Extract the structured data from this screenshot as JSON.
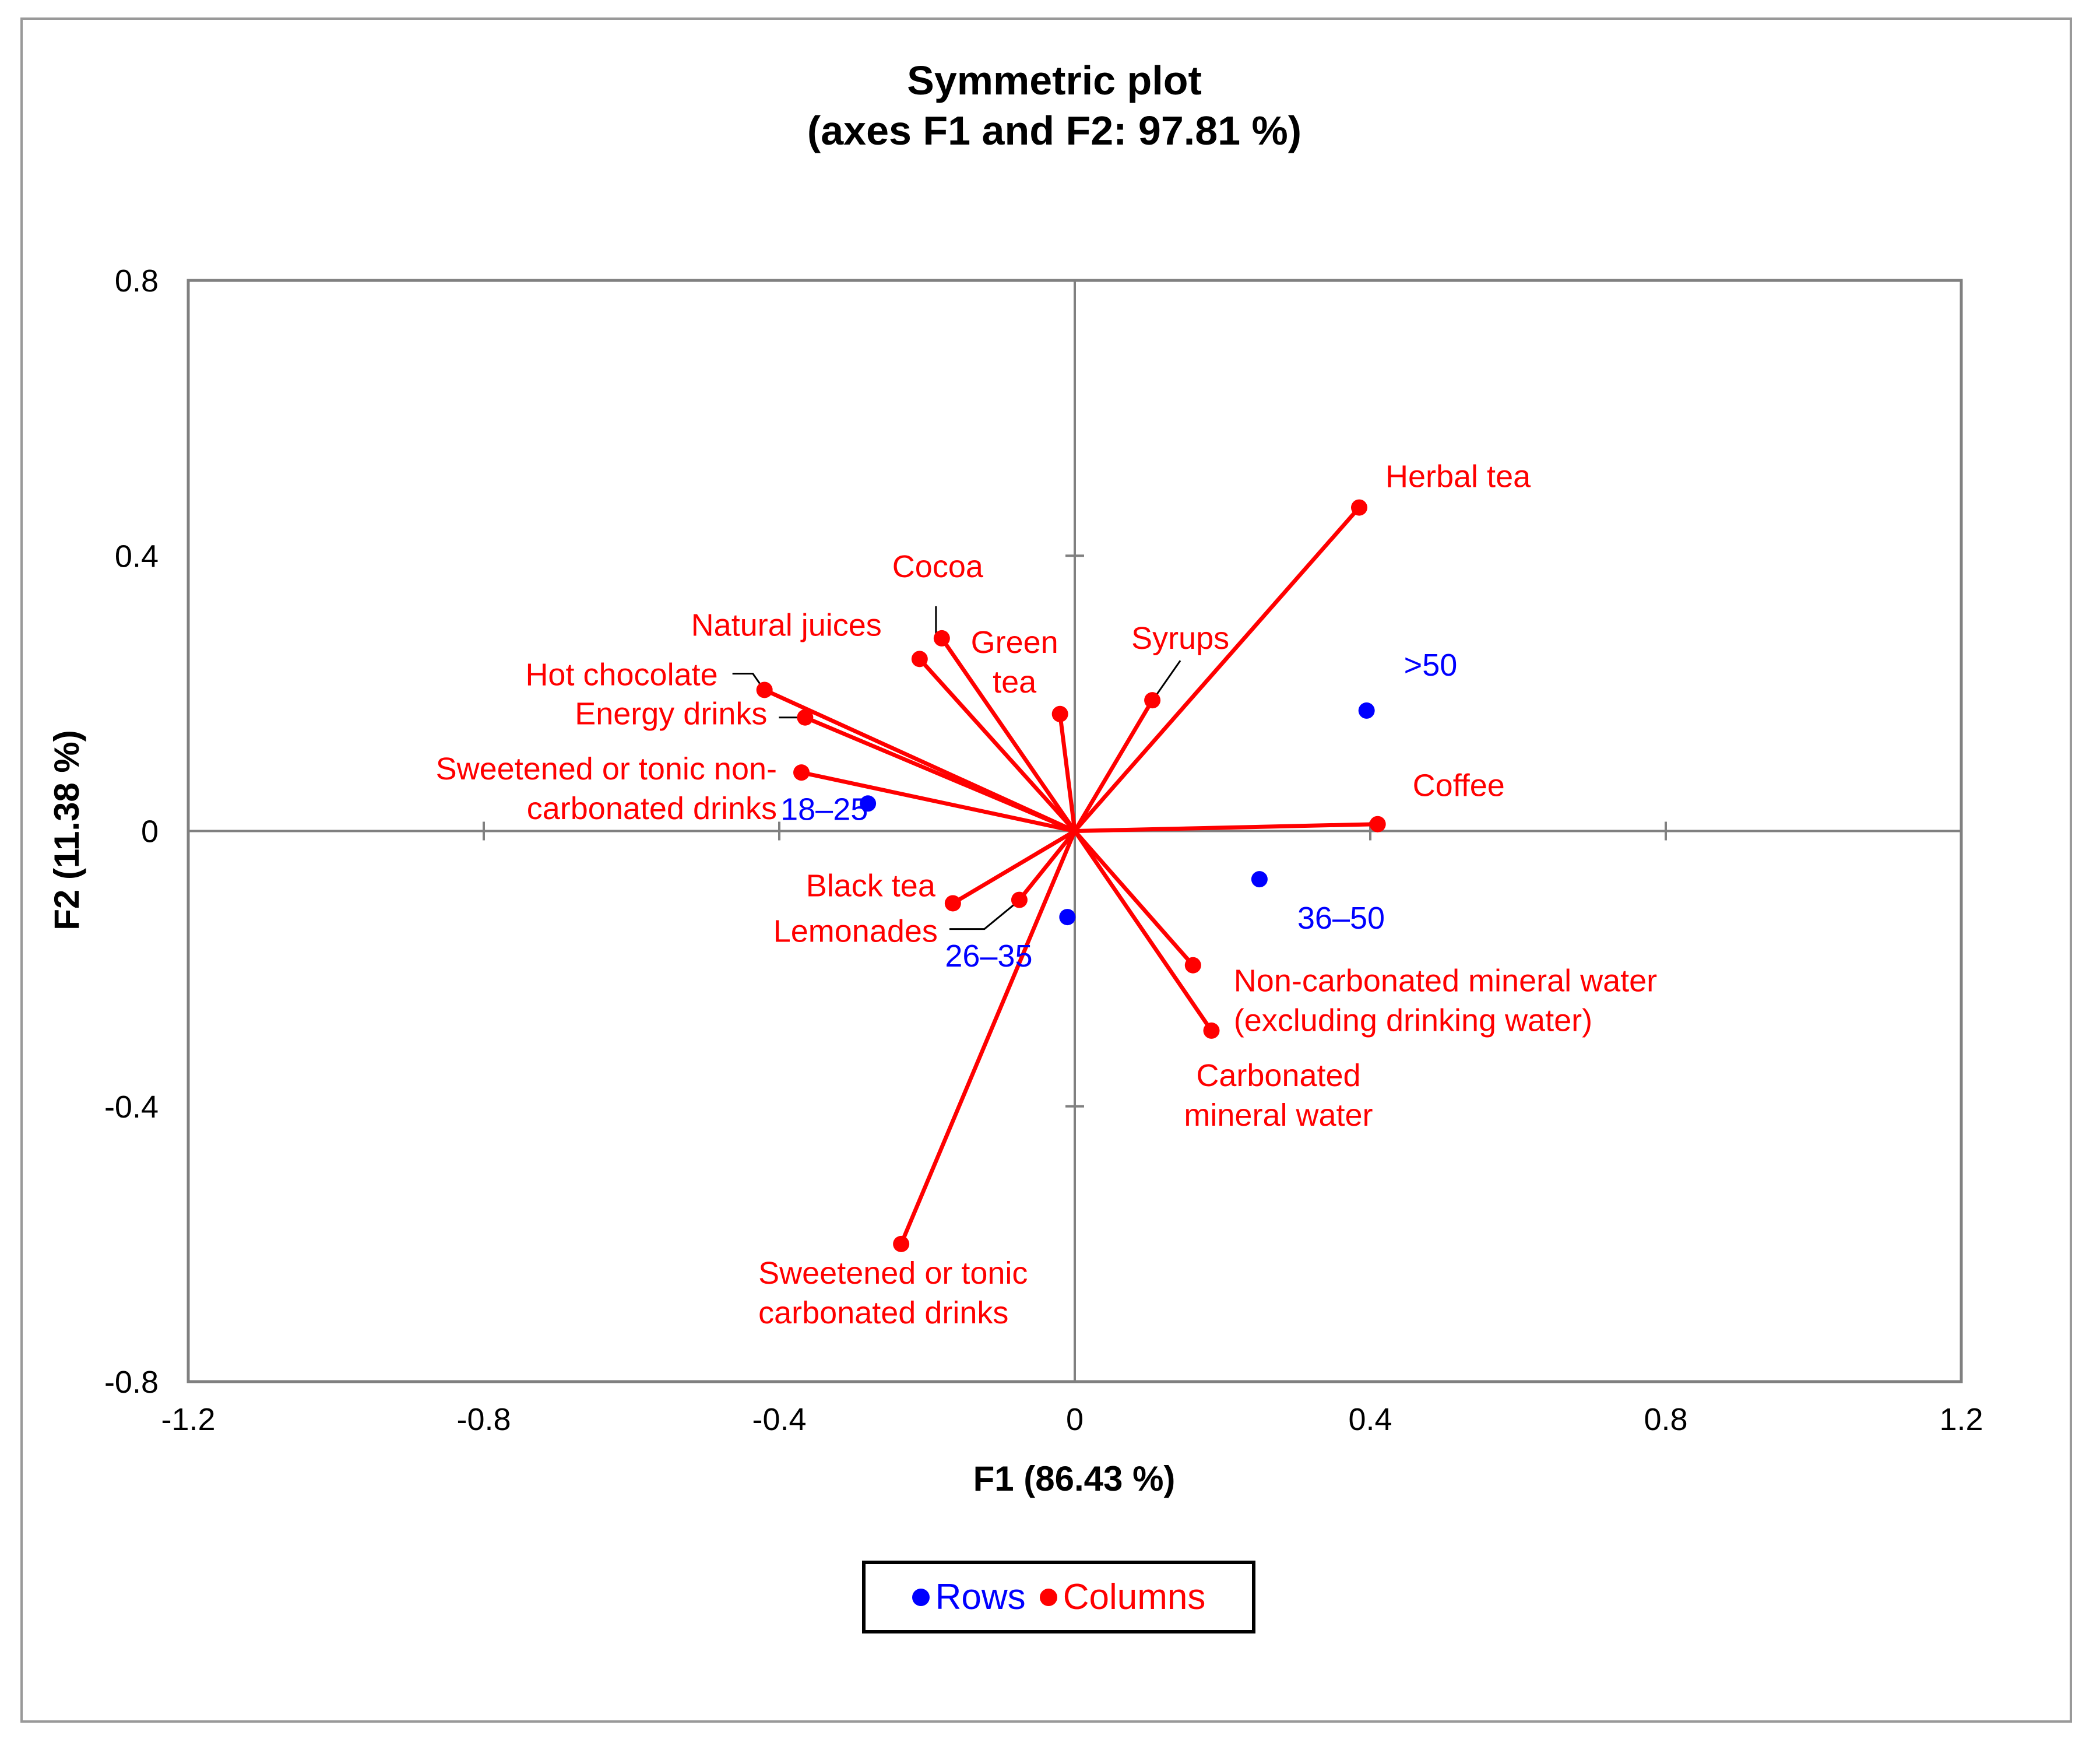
{
  "chart_data": {
    "type": "scatter",
    "title": "Symmetric plot",
    "subtitle": "(axes F1 and F2: 97.81 %)",
    "xlabel": "F1 (86.43 %)",
    "ylabel": "F2 (11.38 %)",
    "xlim": [
      -1.2,
      1.2
    ],
    "ylim": [
      -0.8,
      0.8
    ],
    "xticks": [
      "-1.2",
      "-0.8",
      "-0.4",
      "0",
      "0.4",
      "0.8",
      "1.2"
    ],
    "yticks": [
      "0.8",
      "0.4",
      "0",
      "-0.4",
      "-0.8"
    ],
    "legend_position": "bottom-center",
    "series": [
      {
        "name": "Rows",
        "color": "#0000ff",
        "points": [
          {
            "label": "18–25",
            "x": -0.28,
            "y": 0.04
          },
          {
            "label": "26–35",
            "x": -0.01,
            "y": -0.125
          },
          {
            "label": "36–50",
            "x": 0.25,
            "y": -0.07
          },
          {
            "label": ">50",
            "x": 0.395,
            "y": 0.175
          }
        ]
      },
      {
        "name": "Columns",
        "color": "#ff0000",
        "points": [
          {
            "label": "Herbal tea",
            "x": 0.385,
            "y": 0.47
          },
          {
            "label": "Cocoa",
            "x": -0.18,
            "y": 0.28
          },
          {
            "label": "Natural juices",
            "x": -0.21,
            "y": 0.25
          },
          {
            "label": "Green tea",
            "x": -0.02,
            "y": 0.17
          },
          {
            "label": "Syrups",
            "x": 0.105,
            "y": 0.19
          },
          {
            "label": "Hot chocolate",
            "x": -0.42,
            "y": 0.205
          },
          {
            "label": "Energy drinks",
            "x": -0.365,
            "y": 0.165
          },
          {
            "label": "Sweetened or tonic non-carbonated drinks",
            "x": -0.37,
            "y": 0.085
          },
          {
            "label": "Coffee",
            "x": 0.41,
            "y": 0.01
          },
          {
            "label": "Black tea",
            "x": -0.165,
            "y": -0.105
          },
          {
            "label": "Lemonades",
            "x": -0.075,
            "y": -0.1
          },
          {
            "label": "Non-carbonated mineral water (excluding drinking water)",
            "x": 0.16,
            "y": -0.195
          },
          {
            "label": "Carbonated mineral water",
            "x": 0.185,
            "y": -0.29
          },
          {
            "label": "Sweetened or tonic carbonated drinks",
            "x": -0.235,
            "y": -0.6
          }
        ]
      }
    ],
    "point_labels": {
      "Herbal tea": [
        "Herbal tea"
      ],
      "Cocoa": [
        "Cocoa"
      ],
      "Natural juices": [
        "Natural juices"
      ],
      "Green tea": [
        "Green",
        "tea"
      ],
      "Syrups": [
        "Syrups"
      ],
      "Hot chocolate": [
        "Hot chocolate"
      ],
      "Energy drinks": [
        "Energy drinks"
      ],
      "Sweetened or tonic non-carbonated drinks": [
        "Sweetened or tonic non-",
        "carbonated drinks"
      ],
      "Coffee": [
        "Coffee"
      ],
      "Black tea": [
        "Black tea"
      ],
      "Lemonades": [
        "Lemonades"
      ],
      "Non-carbonated mineral water (excluding drinking water)": [
        "Non-carbonated mineral water",
        "(excluding drinking water)"
      ],
      "Carbonated mineral water": [
        "Carbonated",
        "mineral water"
      ],
      "Sweetened or tonic carbonated drinks": [
        "Sweetened or tonic",
        "carbonated drinks"
      ],
      "18–25": [
        "18–25"
      ],
      "26–35": [
        "26–35"
      ],
      "36–50": [
        "36–50"
      ],
      ">50": [
        ">50"
      ]
    }
  },
  "legend": {
    "rows_label": "Rows",
    "columns_label": "Columns",
    "rows_color": "#0000ff",
    "columns_color": "#ff0000"
  }
}
